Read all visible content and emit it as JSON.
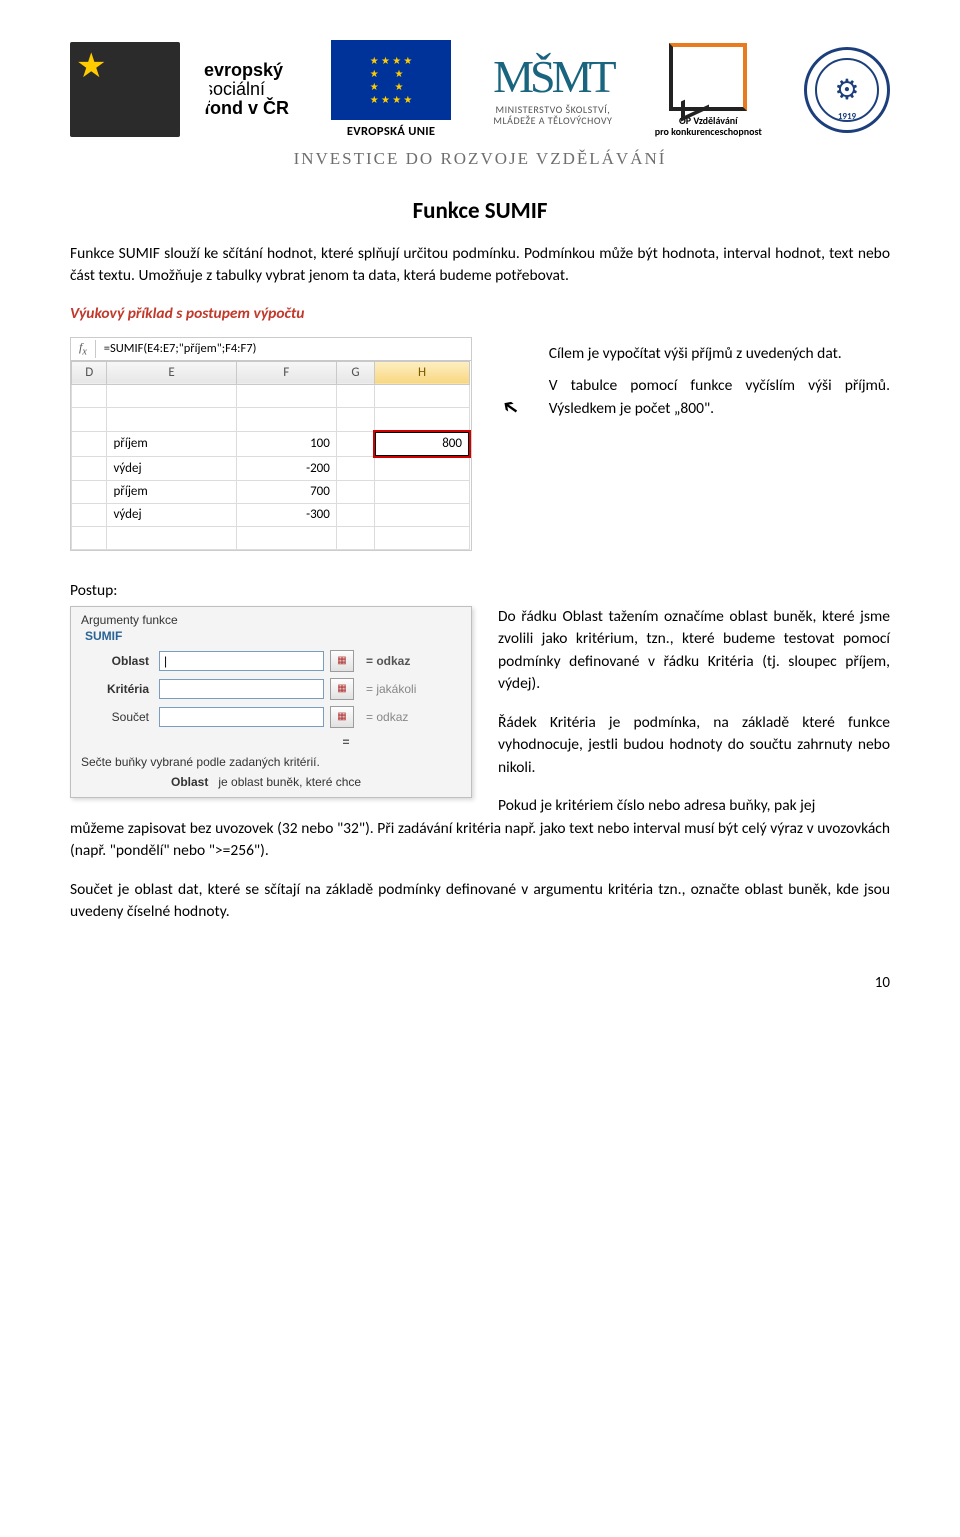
{
  "header": {
    "esf": {
      "line1": "evropský",
      "line2": "sociální",
      "line3": "fond v ČR"
    },
    "eu": {
      "label": "EVROPSKÁ UNIE"
    },
    "msmt": {
      "icon": "MŠMT",
      "line1": "MINISTERSTVO ŠKOLSTVÍ,",
      "line2": "MLÁDEŽE A TĚLOVÝCHOVY"
    },
    "op": {
      "line1": "OP Vzdělávání",
      "line2": "pro konkurenceschopnost"
    },
    "seal_year": "1919",
    "banner": "INVESTICE DO ROZVOJE VZDĚLÁVÁNÍ"
  },
  "title": "Funkce SUMIF",
  "intro1": "Funkce SUMIF slouží ke sčítání hodnot, které splňují určitou podmínku. Podmínkou může být hodnota, interval hodnot, text nebo část textu. Umožňuje z tabulky vybrat jenom ta data, která budeme potřebovat.",
  "section_red": "Výukový příklad s postupem výpočtu",
  "excel": {
    "formula": "=SUMIF(E4:E7;\"příjem\";F4:F7)",
    "cols": [
      "D",
      "E",
      "F",
      "G",
      "H"
    ],
    "active_col": "H",
    "rows": [
      {
        "label": "příjem",
        "value": "100",
        "result": "800"
      },
      {
        "label": "výdej",
        "value": "-200"
      },
      {
        "label": "příjem",
        "value": "700"
      },
      {
        "label": "výdej",
        "value": "-300"
      }
    ]
  },
  "side1": "Cílem je vypočítat výši příjmů z uvedených dat.",
  "side2": "V tabulce pomocí funkce vyčíslím výši příjmů. Výsledkem je počet „800\".",
  "postup_label": "Postup:",
  "dialog": {
    "header": "Argumenty funkce",
    "fn": "SUMIF",
    "fields": [
      {
        "label": "Oblast",
        "bold": true,
        "val": "|",
        "hint": "odkaz",
        "hint_bold": true
      },
      {
        "label": "Kritéria",
        "bold": true,
        "val": "",
        "hint": "jakákoli",
        "hint_bold": false
      },
      {
        "label": "Součet",
        "bold": false,
        "val": "",
        "hint": "odkaz",
        "hint_bold": false
      }
    ],
    "eq": "=",
    "desc": "Sečte buňky vybrané podle zadaných kritérií.",
    "sub_key": "Oblast",
    "sub_text": "je oblast buněk, které chce"
  },
  "side_dialog1": "Do řádku Oblast tažením označíme oblast buněk, které jsme zvolili jako kritérium, tzn., které budeme testovat pomocí podmínky definované v řádku Kritéria (tj. sloupec příjem, výdej).",
  "side_dialog2_part1": "Řádek Kritéria je podmínka, na základě které funkce vyhodnocuje, jestli budou hodnoty do součtu zahrnuty nebo nikoli.",
  "side_dialog2_part2": "Pokud je kritériem číslo nebo adresa buňky, pak jej",
  "wrap_text": "můžeme zapisovat bez uvozovek (32 nebo \"32\"). Při zadávání kritéria např. jako text nebo interval musí být celý výraz v uvozovkách (např. \"pondělí\" nebo \">=256\").",
  "bottom_para": "Součet je oblast dat, které se sčítají na základě podmínky definované v argumentu kritéria tzn., označte oblast buněk, kde jsou uvedeny číselné hodnoty.",
  "page_number": "10",
  "colors": {
    "red": "#c0392b",
    "highlight_border": "#d00000",
    "eu_blue": "#003399",
    "eu_gold": "#ffcc00"
  }
}
